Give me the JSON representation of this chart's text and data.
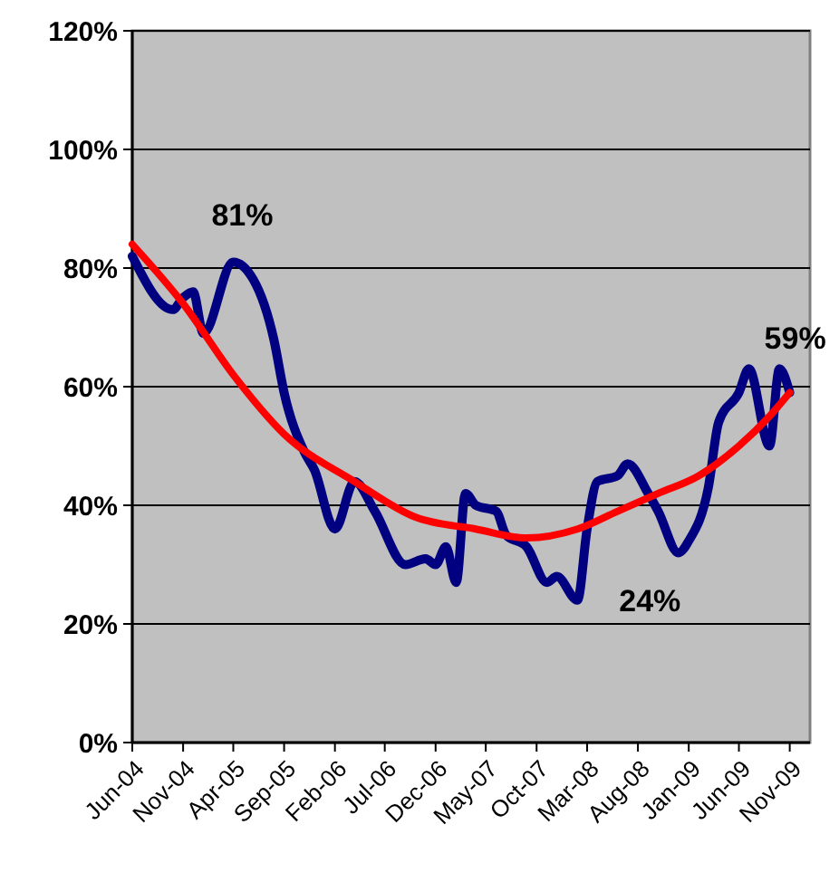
{
  "chart_data": {
    "type": "line",
    "xlim": [
      "2004-06",
      "2010-01"
    ],
    "ylim": [
      0,
      120
    ],
    "yticks": [
      {
        "value": 0,
        "label": "0%"
      },
      {
        "value": 20,
        "label": "20%"
      },
      {
        "value": 40,
        "label": "40%"
      },
      {
        "value": 60,
        "label": "60%"
      },
      {
        "value": 80,
        "label": "80%"
      },
      {
        "value": 100,
        "label": "100%"
      },
      {
        "value": 120,
        "label": "120%"
      }
    ],
    "xticks": [
      {
        "value": "2004-06",
        "label": "Jun-04"
      },
      {
        "value": "2004-11",
        "label": "Nov-04"
      },
      {
        "value": "2005-04",
        "label": "Apr-05"
      },
      {
        "value": "2005-09",
        "label": "Sep-05"
      },
      {
        "value": "2006-02",
        "label": "Feb-06"
      },
      {
        "value": "2006-07",
        "label": "Jul-06"
      },
      {
        "value": "2006-12",
        "label": "Dec-06"
      },
      {
        "value": "2007-05",
        "label": "May-07"
      },
      {
        "value": "2007-10",
        "label": "Oct-07"
      },
      {
        "value": "2008-03",
        "label": "Mar-08"
      },
      {
        "value": "2008-08",
        "label": "Aug-08"
      },
      {
        "value": "2009-01",
        "label": "Jan-09"
      },
      {
        "value": "2009-06",
        "label": "Jun-09"
      },
      {
        "value": "2009-11",
        "label": "Nov-09"
      }
    ],
    "grid": "y",
    "marker": "none",
    "line_style": "solid",
    "series": [
      {
        "color": "#000080",
        "x": [
          "2004-06",
          "2004-10",
          "2004-11",
          "2004-12",
          "2005-01",
          "2005-04",
          "2005-06",
          "2005-08",
          "2005-09",
          "2005-11",
          "2005-12",
          "2006-02",
          "2006-04",
          "2006-06",
          "2006-09",
          "2006-11",
          "2006-12",
          "2007-01",
          "2007-02",
          "2007-03",
          "2007-04",
          "2007-06",
          "2007-07",
          "2007-09",
          "2007-11",
          "2007-12",
          "2008-02",
          "2008-03",
          "2008-04",
          "2008-06",
          "2008-07",
          "2008-09",
          "2008-10",
          "2008-12",
          "2009-01",
          "2009-03",
          "2009-04",
          "2009-06",
          "2009-07",
          "2009-09",
          "2009-10",
          "2009-11"
        ],
        "values": [
          82,
          73,
          75,
          76,
          69,
          81,
          78,
          68,
          59,
          49,
          46,
          36,
          44,
          39,
          30,
          31,
          30,
          33,
          27,
          42,
          40,
          39,
          35,
          33,
          27,
          28,
          24,
          36,
          44,
          45,
          47,
          42,
          39,
          32,
          34,
          43,
          54,
          59,
          63,
          50,
          63,
          59
        ]
      },
      {
        "color": "#ff0000",
        "x": [
          "2004-06",
          "2004-11",
          "2005-04",
          "2005-09",
          "2006-04",
          "2006-10",
          "2007-04",
          "2007-09",
          "2008-02",
          "2008-06",
          "2008-10",
          "2009-02",
          "2009-06",
          "2009-09",
          "2009-11"
        ],
        "values": [
          84,
          74,
          62,
          52,
          44,
          38,
          36,
          34.5,
          36,
          39,
          42,
          45,
          50,
          55,
          59
        ]
      }
    ],
    "annotations": [
      {
        "text": "81%",
        "x": "2005-04",
        "y": 81
      },
      {
        "text": "24%",
        "x": "2008-02",
        "y": 24
      },
      {
        "text": "59%",
        "x": "2009-11",
        "y": 59
      }
    ]
  }
}
